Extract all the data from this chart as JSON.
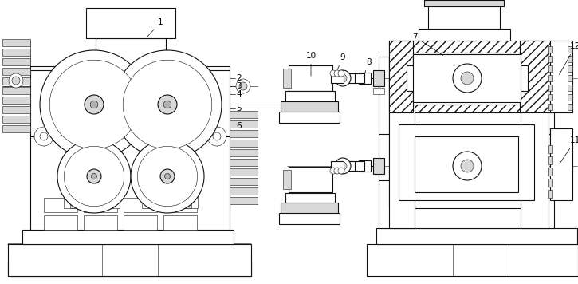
{
  "background_color": "#ffffff",
  "fig_width": 7.25,
  "fig_height": 3.56,
  "dpi": 100,
  "lw_main": 0.8,
  "lw_thin": 0.4,
  "lw_thick": 1.2,
  "fc_white": "#ffffff",
  "fc_light": "#f0f0f0",
  "fc_mid": "#d8d8d8",
  "fc_dark": "#b0b0b0",
  "ec": "#111111"
}
